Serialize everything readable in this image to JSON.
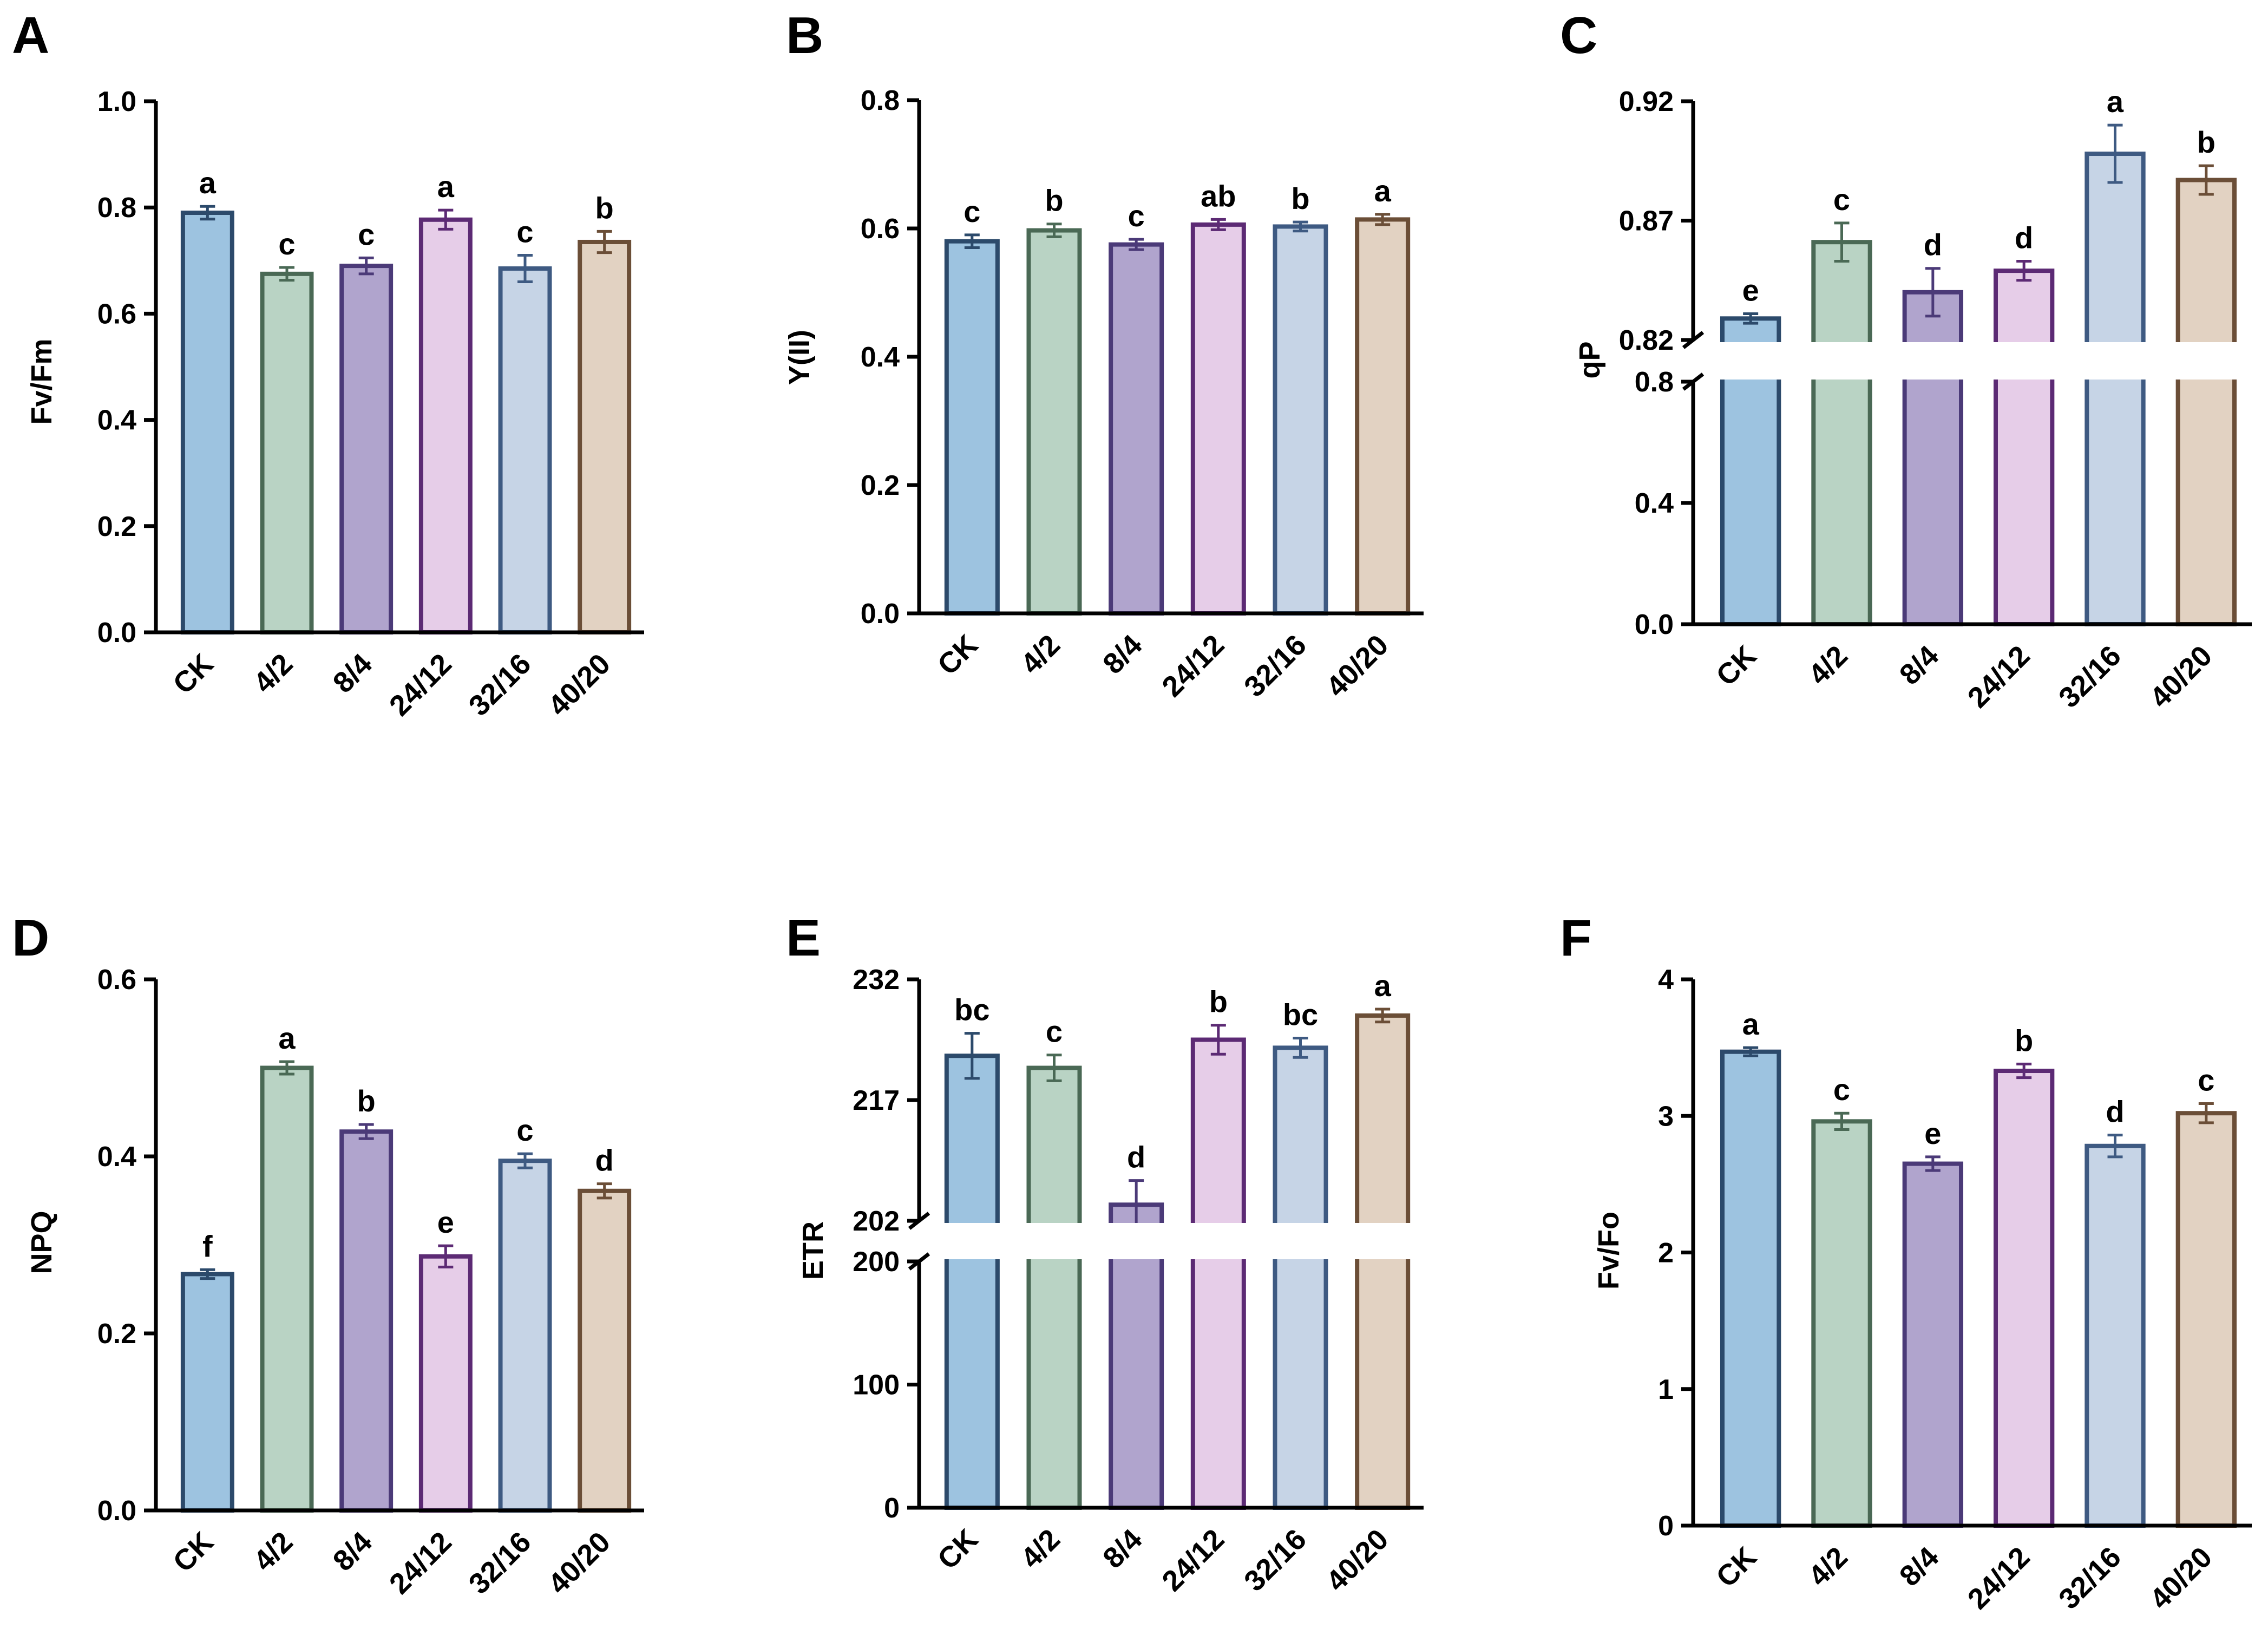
{
  "categories": [
    "CK",
    "4/2",
    "8/4",
    "24/12",
    "32/16",
    "40/20"
  ],
  "colors": {
    "fills": [
      "#9dc3e0",
      "#b9d3c4",
      "#b0a4cd",
      "#e6cde8",
      "#c6d4e6",
      "#e2d2c2"
    ],
    "strokes": [
      "#2c4a6b",
      "#4a6955",
      "#4b3a78",
      "#5c2a74",
      "#3e5a82",
      "#6b4e37"
    ]
  },
  "chart_data": [
    {
      "panel": "A",
      "type": "bar",
      "ylabel": "Fv/Fm",
      "ylim": [
        0,
        1.0
      ],
      "yticks": [
        "0.0",
        "0.2",
        "0.4",
        "0.6",
        "0.8",
        "1.0"
      ],
      "yticks_values": [
        0,
        0.2,
        0.4,
        0.6,
        0.8,
        1.0
      ],
      "values": [
        0.79,
        0.675,
        0.69,
        0.777,
        0.685,
        0.735
      ],
      "errors": [
        0.012,
        0.012,
        0.015,
        0.018,
        0.025,
        0.02
      ],
      "letters": [
        "a",
        "c",
        "c",
        "a",
        "c",
        "b"
      ]
    },
    {
      "panel": "B",
      "type": "bar",
      "ylabel": "Y(II)",
      "ylim": [
        0,
        0.8
      ],
      "yticks": [
        "0.0",
        "0.2",
        "0.4",
        "0.6",
        "0.8"
      ],
      "yticks_values": [
        0,
        0.2,
        0.4,
        0.6,
        0.8
      ],
      "values": [
        0.58,
        0.597,
        0.575,
        0.606,
        0.603,
        0.614
      ],
      "errors": [
        0.01,
        0.01,
        0.008,
        0.008,
        0.007,
        0.008
      ],
      "letters": [
        "c",
        "b",
        "c",
        "ab",
        "b",
        "a"
      ]
    },
    {
      "panel": "C",
      "type": "bar",
      "ylabel": "qP",
      "axis_break": {
        "lower": [
          0,
          0.8
        ],
        "upper": [
          0.82,
          0.92
        ]
      },
      "yticks": [
        "0.0",
        "0.4",
        "0.8",
        "0.82",
        "0.87",
        "0.92"
      ],
      "yticks_values": [
        0,
        0.4,
        0.8,
        0.82,
        0.87,
        0.92
      ],
      "values": [
        0.829,
        0.861,
        0.84,
        0.849,
        0.898,
        0.887
      ],
      "errors": [
        0.002,
        0.008,
        0.01,
        0.004,
        0.012,
        0.006
      ],
      "letters": [
        "e",
        "c",
        "d",
        "d",
        "a",
        "b"
      ]
    },
    {
      "panel": "D",
      "type": "bar",
      "ylabel": "NPQ",
      "ylim": [
        0,
        0.6
      ],
      "yticks": [
        "0.0",
        "0.2",
        "0.4",
        "0.6"
      ],
      "yticks_values": [
        0,
        0.2,
        0.4,
        0.6
      ],
      "values": [
        0.267,
        0.5,
        0.428,
        0.287,
        0.395,
        0.361
      ],
      "errors": [
        0.005,
        0.007,
        0.008,
        0.012,
        0.008,
        0.008
      ],
      "letters": [
        "f",
        "a",
        "b",
        "e",
        "c",
        "d"
      ]
    },
    {
      "panel": "E",
      "type": "bar",
      "ylabel": "ETR",
      "axis_break": {
        "lower": [
          0,
          200
        ],
        "upper": [
          202,
          232
        ]
      },
      "yticks": [
        "0",
        "100",
        "200",
        "202",
        "217",
        "232"
      ],
      "yticks_values": [
        0,
        100,
        200,
        202,
        217,
        232
      ],
      "values": [
        222.5,
        221.0,
        204.0,
        224.5,
        223.5,
        227.5
      ],
      "errors": [
        2.8,
        1.6,
        3.0,
        1.8,
        1.2,
        0.8
      ],
      "letters": [
        "bc",
        "c",
        "d",
        "b",
        "bc",
        "a"
      ]
    },
    {
      "panel": "F",
      "type": "bar",
      "ylabel": "Fv/Fo",
      "ylim": [
        0,
        4
      ],
      "yticks": [
        "0",
        "1",
        "2",
        "3",
        "4"
      ],
      "yticks_values": [
        0,
        1,
        2,
        3,
        4
      ],
      "values": [
        3.47,
        2.96,
        2.65,
        3.33,
        2.78,
        3.02
      ],
      "errors": [
        0.03,
        0.06,
        0.05,
        0.05,
        0.08,
        0.07
      ],
      "letters": [
        "a",
        "c",
        "e",
        "b",
        "d",
        "c"
      ]
    }
  ]
}
